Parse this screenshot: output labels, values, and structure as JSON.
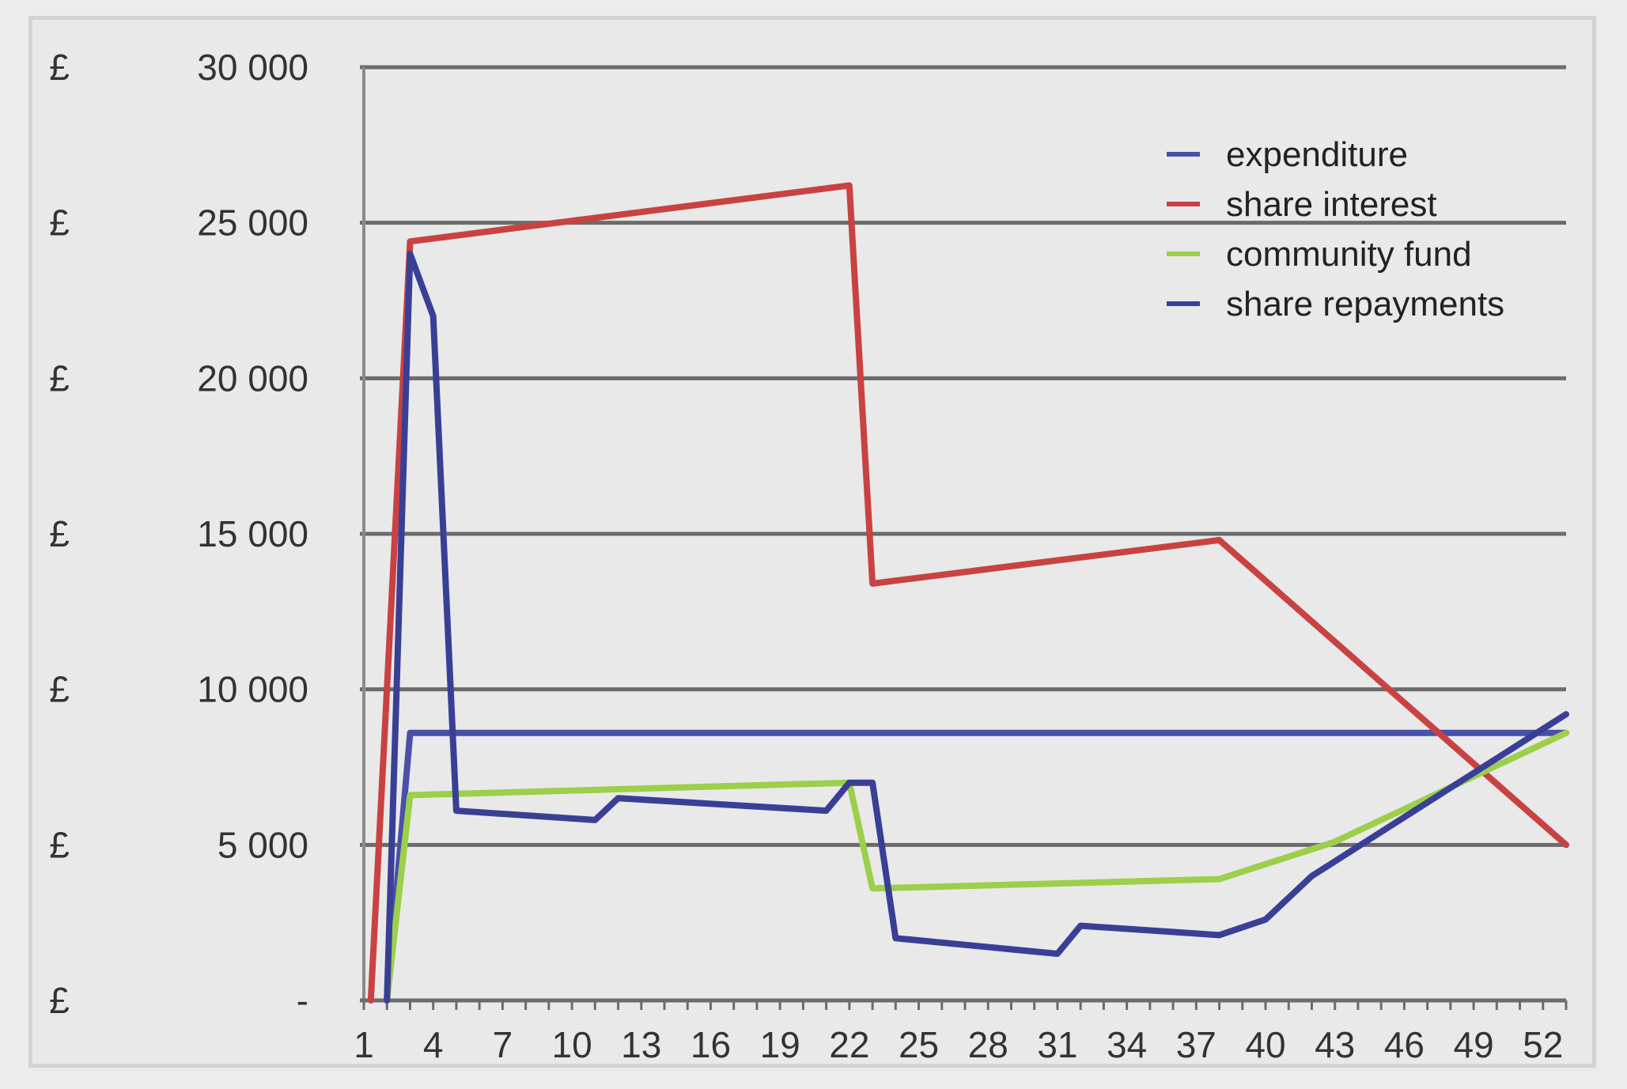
{
  "chart_data": {
    "type": "line",
    "title": "",
    "xlabel": "",
    "ylabel": "",
    "currency_symbol": "£",
    "ylim": [
      0,
      30000
    ],
    "yticks": [
      {
        "value": 30000,
        "label": "30 000"
      },
      {
        "value": 25000,
        "label": "25 000"
      },
      {
        "value": 20000,
        "label": "20 000"
      },
      {
        "value": 15000,
        "label": "15 000"
      },
      {
        "value": 10000,
        "label": "10 000"
      },
      {
        "value": 5000,
        "label": "5 000"
      },
      {
        "value": 0,
        "label": "-"
      }
    ],
    "xlim": [
      1,
      53
    ],
    "xtick_labels": [
      "1",
      "4",
      "7",
      "10",
      "13",
      "16",
      "19",
      "22",
      "25",
      "28",
      "31",
      "34",
      "37",
      "40",
      "43",
      "46",
      "49",
      "52"
    ],
    "grid": "horizontal",
    "legend_position": "top-right",
    "series": [
      {
        "name": "expenditure",
        "color": "#4a4fa8",
        "points": [
          [
            2,
            0
          ],
          [
            3,
            8600
          ],
          [
            53,
            8600
          ]
        ]
      },
      {
        "name": "share interest",
        "color": "#c94242",
        "points": [
          [
            1.3,
            0
          ],
          [
            3,
            24400
          ],
          [
            22,
            26200
          ],
          [
            23,
            13400
          ],
          [
            38,
            14800
          ],
          [
            53,
            5000
          ]
        ]
      },
      {
        "name": "community fund",
        "color": "#9ccf4a",
        "points": [
          [
            2,
            0
          ],
          [
            3,
            6600
          ],
          [
            22,
            7000
          ],
          [
            23,
            3600
          ],
          [
            38,
            3900
          ],
          [
            43,
            5100
          ],
          [
            53,
            8600
          ]
        ]
      },
      {
        "name": "share repayments",
        "color": "#3a3f96",
        "points": [
          [
            2,
            0
          ],
          [
            3,
            24000
          ],
          [
            4,
            22000
          ],
          [
            5,
            6100
          ],
          [
            11,
            5800
          ],
          [
            12,
            6500
          ],
          [
            21,
            6100
          ],
          [
            22,
            7000
          ],
          [
            23,
            7000
          ],
          [
            24,
            2000
          ],
          [
            31,
            1500
          ],
          [
            32,
            2400
          ],
          [
            38,
            2100
          ],
          [
            40,
            2600
          ],
          [
            42,
            4000
          ],
          [
            53,
            9200
          ]
        ]
      }
    ]
  }
}
